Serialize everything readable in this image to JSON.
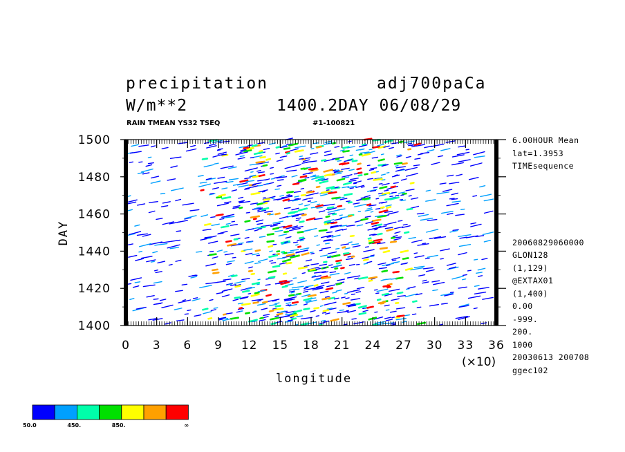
{
  "header": {
    "variable": "precipitation",
    "experiment": "adj700paCa",
    "units": "W/m**2",
    "time_label": "1400.2DAY 06/08/29",
    "subtitle_left": "RAIN TMEAN YS32 TSEQ",
    "subtitle_right": "#1-100821"
  },
  "info_lines": [
    "6.00HOUR Mean",
    "lat=1.3953",
    "TIMEsequence",
    "20060829060000",
    "GLON128",
    "(1,129)",
    "@EXTAX01",
    "(1,400)",
    "0.00",
    "-999.",
    "200.",
    "1000",
    "20030613 200708",
    "ggec102"
  ],
  "x_scale_note": "(×10)",
  "colorbar": {
    "colors": [
      "#0000ff",
      "#00a0ff",
      "#00ffaa",
      "#00e000",
      "#ffff00",
      "#ffa000",
      "#ff0000"
    ],
    "labels": [
      "50.0",
      "450.",
      "850.",
      "∞"
    ]
  },
  "chart_data": {
    "type": "heatmap",
    "xlabel": "longitude",
    "ylabel": "DAY",
    "xlim": [
      0,
      36
    ],
    "ylim": [
      1400,
      1500
    ],
    "x_ticks": [
      "0",
      "3",
      "6",
      "9",
      "12",
      "15",
      "18",
      "21",
      "24",
      "27",
      "30",
      "33",
      "36"
    ],
    "y_ticks": [
      "1400",
      "1420",
      "1440",
      "1460",
      "1480",
      "1500"
    ],
    "contour_levels": [
      50,
      250,
      450,
      650,
      850,
      1050
    ],
    "description_of_field": "Longitude-time Hovmoller of 6-hourly mean precipitation; intense eastward-propagating rain streaks concentrated between longitude 9 and 27 (x10)"
  }
}
